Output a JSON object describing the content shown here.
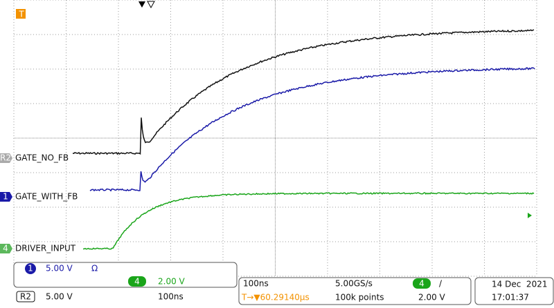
{
  "trigger_marker": "T",
  "channels": [
    {
      "marker": "R2",
      "label": "GATE_NO_FB"
    },
    {
      "marker": "1",
      "label": "GATE_WITH_FB"
    },
    {
      "marker": "4",
      "label": "DRIVER_INPUT"
    }
  ],
  "channel_panel": {
    "ch1": {
      "marker": "1",
      "scale": "5.00 V",
      "coupling": "Ω"
    },
    "ch4": {
      "marker": "4",
      "scale": "2.00 V"
    },
    "ref2": {
      "marker": "R2",
      "scale": "5.00 V",
      "time": "100ns"
    }
  },
  "timebase_panel": {
    "time_per_div": "100ns",
    "sample_rate": "5.00GS/s",
    "trigger_source": "4",
    "trigger_slope": "/",
    "trigger_position": "T→▼60.29140µs",
    "record_length": "100k points",
    "trigger_level": "2.00 V"
  },
  "date_panel": {
    "date": "14 Dec  2021",
    "time": "17:01:37"
  }
}
